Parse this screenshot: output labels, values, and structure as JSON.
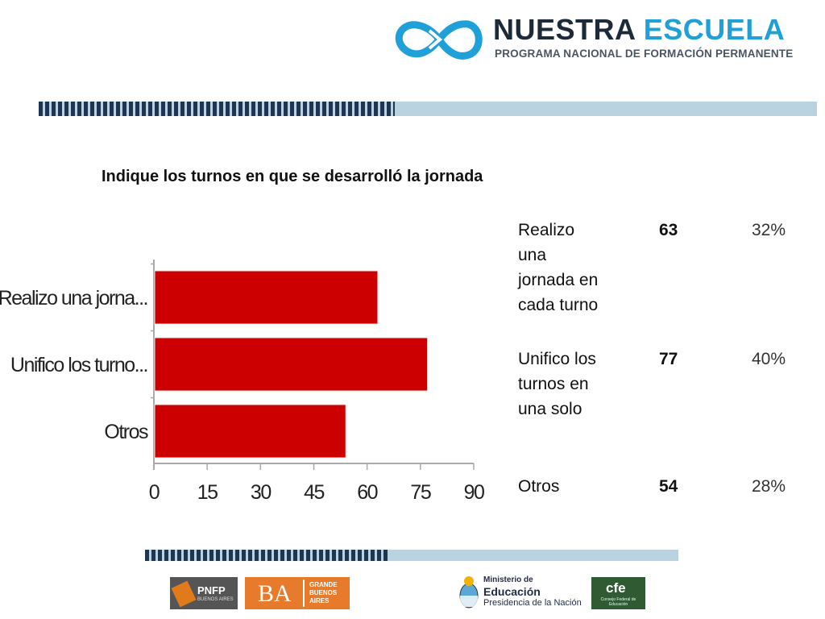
{
  "header": {
    "brand_part1": "NUESTRA",
    "brand_part2": "ESCUELA",
    "brand_subtitle": "PROGRAMA NACIONAL DE FORMACIÓN PERMANENTE",
    "brand_color": "#1fa0d8"
  },
  "slide_title": "Indique los turnos en que se desarrolló la jornada",
  "chart_data": {
    "type": "bar",
    "orientation": "horizontal",
    "categories": [
      "Realizo una jorna...",
      "Unifico los turno...",
      "Otros"
    ],
    "values": [
      63,
      77,
      54
    ],
    "xlim": [
      0,
      90
    ],
    "xticks": [
      "0",
      "15",
      "30",
      "45",
      "60",
      "75",
      "90"
    ],
    "bar_color": "#cc0000",
    "grid": false
  },
  "table": [
    {
      "label": "Realizo una jornada en cada turno",
      "lines": [
        "Realizo",
        "una",
        "jornada en",
        "cada turno"
      ],
      "count": "63",
      "percent": "32%"
    },
    {
      "label": "Unifico los turnos en una solo",
      "lines": [
        "Unifico los",
        "turnos en",
        "una solo"
      ],
      "count": "77",
      "percent": "40%"
    },
    {
      "label": "Otros",
      "lines": [
        "Otros"
      ],
      "count": "54",
      "percent": "28%"
    }
  ],
  "footer": {
    "pnfp_label": "PNFP",
    "pnfp_sub": "BUENOS AIRES",
    "ba_label": "BA",
    "ba_sub_lines": [
      "GRANDE",
      "BUENOS",
      "AIRES"
    ],
    "ministerio_lines": [
      "Ministerio de",
      "Educación",
      "Presidencia de la Nación"
    ],
    "cfe_label": "cfe",
    "cfe_sub": "Consejo Federal de Educación"
  }
}
